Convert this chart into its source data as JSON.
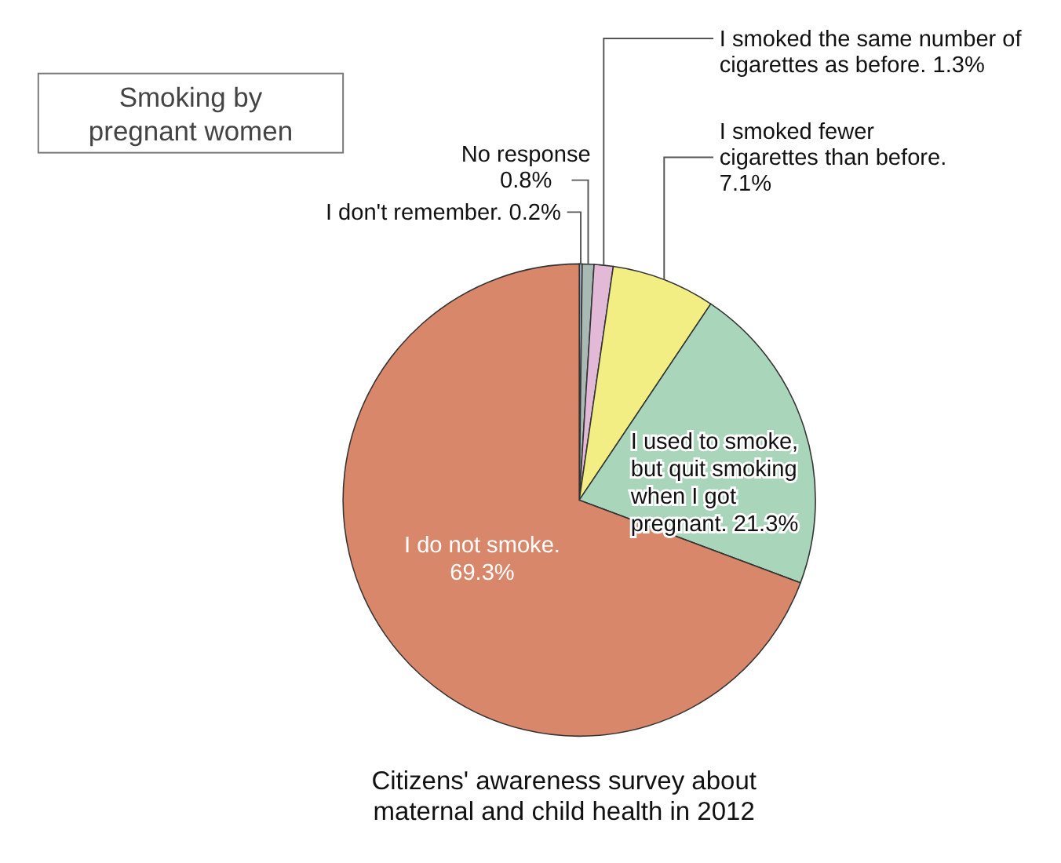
{
  "chart_data": {
    "type": "pie",
    "title": "Smoking by pregnant women",
    "categories": [
      "I don't remember.",
      "No response",
      "I smoked the same number of cigarettes as before.",
      "I smoked fewer cigarettes than before.",
      "I used to smoke, but quit smoking when I got pregnant.",
      "I do not smoke."
    ],
    "values": [
      0.2,
      0.8,
      1.3,
      7.1,
      21.3,
      69.3
    ],
    "colors": [
      "#94a6bc",
      "#a9b9b3",
      "#e2b9d6",
      "#f2ee84",
      "#a9d5bb",
      "#d9876b"
    ],
    "value_labels": [
      "0.2%",
      "0.8%",
      "1.3%",
      "7.1%",
      "21.3%",
      "69.3%"
    ],
    "annotations": [
      "Citizens' awareness survey about maternal and child health in 2012"
    ]
  }
}
